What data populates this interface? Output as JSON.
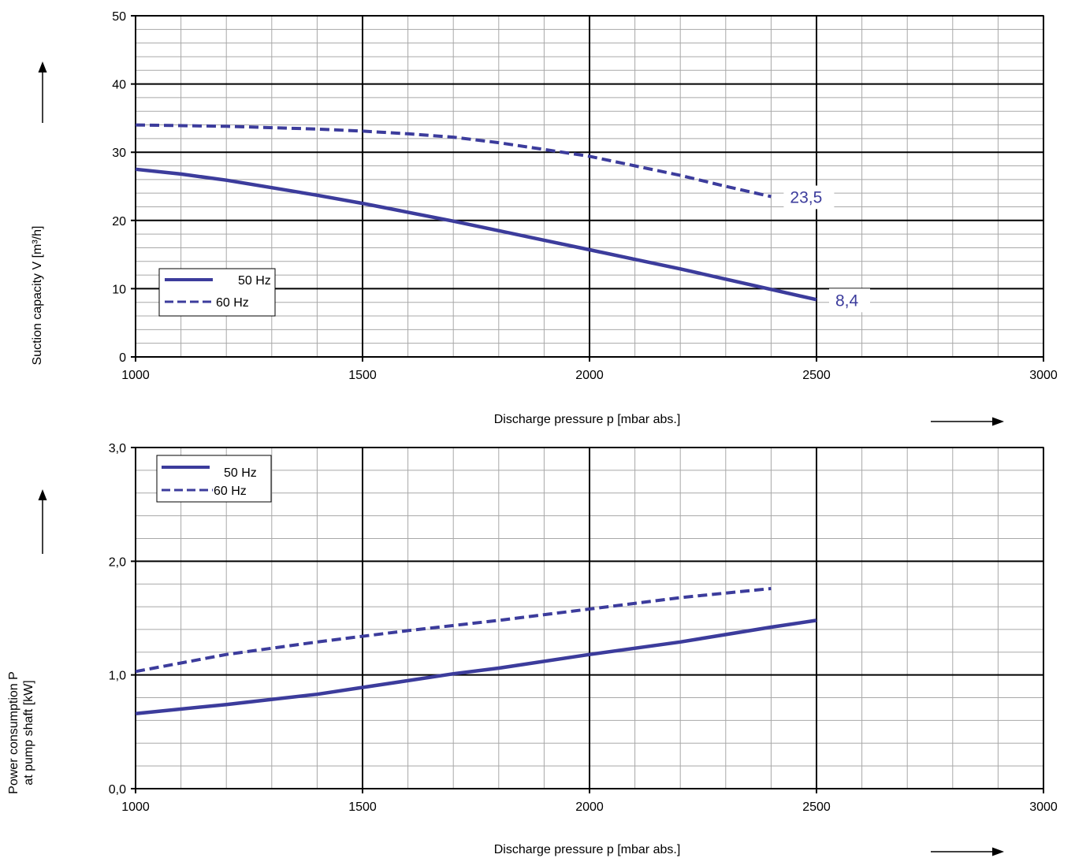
{
  "chart_data": [
    {
      "type": "line",
      "title": "",
      "xlabel": "Discharge pressure p [mbar abs.]",
      "ylabel": "Suction capacity V [m³/h]",
      "xlim": [
        1000,
        3000
      ],
      "ylim": [
        0,
        50
      ],
      "xticks": [
        1000,
        1500,
        2000,
        2500,
        3000
      ],
      "xtick_labels": [
        "1000",
        "1500",
        "2000",
        "2500",
        "3000"
      ],
      "yticks": [
        0,
        10,
        20,
        30,
        40,
        50
      ],
      "ytick_labels": [
        "0",
        "10",
        "20",
        "30",
        "40",
        "50"
      ],
      "grid": true,
      "legend_position": "left",
      "series": [
        {
          "name": "50 Hz",
          "style": "solid",
          "x": [
            1000,
            1100,
            1200,
            1300,
            1400,
            1500,
            1600,
            1700,
            1800,
            1900,
            2000,
            2100,
            2200,
            2300,
            2400,
            2500
          ],
          "y": [
            27.5,
            26.8,
            25.9,
            24.8,
            23.7,
            22.5,
            21.2,
            19.9,
            18.5,
            17.1,
            15.7,
            14.3,
            12.9,
            11.4,
            9.9,
            8.4
          ]
        },
        {
          "name": "60 Hz",
          "style": "dashed",
          "x": [
            1000,
            1200,
            1400,
            1500,
            1600,
            1700,
            1800,
            1900,
            2000,
            2100,
            2200,
            2300,
            2400
          ],
          "y": [
            34.0,
            33.8,
            33.4,
            33.1,
            32.7,
            32.2,
            31.4,
            30.4,
            29.4,
            28.0,
            26.6,
            25.0,
            23.5
          ]
        }
      ],
      "annotations": [
        {
          "text": "23,5",
          "x": 2400,
          "y": 23.5
        },
        {
          "text": "8,4",
          "x": 2500,
          "y": 8.4
        }
      ]
    },
    {
      "type": "line",
      "title": "",
      "xlabel": "Discharge pressure p [mbar abs.]",
      "ylabel": "Power consumption P at pump shaft [kW]",
      "ylabel_lines": [
        "Power consumption P",
        "at pump shaft [kW]"
      ],
      "xlim": [
        1000,
        3000
      ],
      "ylim": [
        0,
        3
      ],
      "xticks": [
        1000,
        1500,
        2000,
        2500,
        3000
      ],
      "xtick_labels": [
        "1000",
        "1500",
        "2000",
        "2500",
        "3000"
      ],
      "yticks": [
        0,
        1,
        2,
        3
      ],
      "ytick_labels": [
        "0,0",
        "1,0",
        "2,0",
        "3,0"
      ],
      "grid": true,
      "legend_position": "top-left",
      "series": [
        {
          "name": "50 Hz",
          "style": "solid",
          "x": [
            1000,
            1200,
            1400,
            1500,
            1600,
            1700,
            1800,
            2000,
            2200,
            2400,
            2500
          ],
          "y": [
            0.66,
            0.74,
            0.83,
            0.89,
            0.95,
            1.01,
            1.06,
            1.18,
            1.29,
            1.42,
            1.48
          ]
        },
        {
          "name": "60 Hz",
          "style": "dashed",
          "x": [
            1000,
            1200,
            1400,
            1600,
            1800,
            2000,
            2200,
            2400
          ],
          "y": [
            1.03,
            1.18,
            1.29,
            1.39,
            1.48,
            1.58,
            1.68,
            1.76
          ]
        }
      ]
    }
  ],
  "colors": {
    "series": "#3c3c9c",
    "annotation_text": "#3c3c9c",
    "major_grid": "#000000",
    "minor_grid": "#a8a8a8",
    "text": "#000000"
  }
}
